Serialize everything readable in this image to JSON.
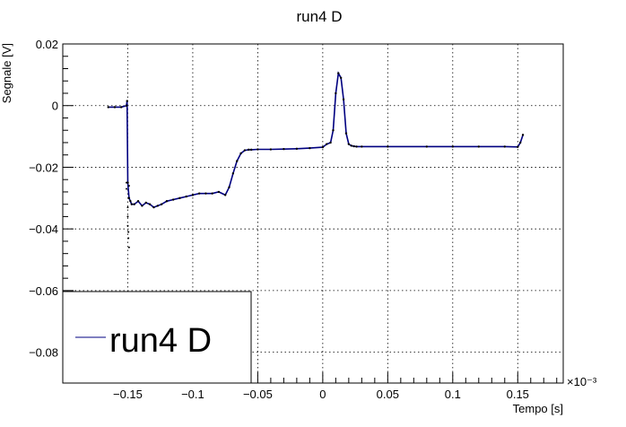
{
  "chart_data": {
    "type": "scatter",
    "title": "run4 D",
    "xlabel": "Tempo [s]",
    "ylabel": "Segnale [V]",
    "x_multiplier": "×10⁻³",
    "xlim": [
      -0.2,
      0.185
    ],
    "ylim": [
      -0.09,
      0.02
    ],
    "x_ticks": [
      {
        "value": -0.15,
        "label": "−0.15"
      },
      {
        "value": -0.1,
        "label": "−0.1"
      },
      {
        "value": -0.05,
        "label": "−0.05"
      },
      {
        "value": 0,
        "label": "0"
      },
      {
        "value": 0.05,
        "label": "0.05"
      },
      {
        "value": 0.1,
        "label": "0.1"
      },
      {
        "value": 0.15,
        "label": "0.15"
      }
    ],
    "y_ticks": [
      {
        "value": 0.02,
        "label": "0.02"
      },
      {
        "value": 0,
        "label": "0"
      },
      {
        "value": -0.02,
        "label": "−0.02"
      },
      {
        "value": -0.04,
        "label": "−0.04"
      },
      {
        "value": -0.06,
        "label": "−0.06"
      },
      {
        "value": -0.08,
        "label": "−0.08"
      }
    ],
    "grid": true,
    "legend": {
      "position": "bottom-left",
      "entries": [
        "run4 D"
      ]
    },
    "colors": {
      "series": "#000080",
      "marker": "#000000",
      "grid": "#000000"
    },
    "series": [
      {
        "name": "run4 D",
        "x": [
          -0.165,
          -0.16,
          -0.155,
          -0.151,
          -0.1505,
          -0.15,
          -0.149,
          -0.148,
          -0.147,
          -0.145,
          -0.142,
          -0.139,
          -0.136,
          -0.133,
          -0.13,
          -0.127,
          -0.124,
          -0.12,
          -0.115,
          -0.11,
          -0.105,
          -0.1,
          -0.095,
          -0.09,
          -0.085,
          -0.08,
          -0.075,
          -0.072,
          -0.069,
          -0.066,
          -0.063,
          -0.06,
          -0.057,
          -0.055,
          -0.05,
          -0.04,
          -0.03,
          -0.02,
          -0.01,
          0,
          0.003,
          0.006,
          0.008,
          0.01,
          0.012,
          0.014,
          0.016,
          0.018,
          0.02,
          0.022,
          0.024,
          0.026,
          0.03,
          0.05,
          0.08,
          0.1,
          0.12,
          0.14,
          0.15,
          0.152,
          0.154
        ],
        "y": [
          -0.0005,
          -0.0005,
          -0.0005,
          0.0,
          0.0015,
          -0.025,
          -0.03,
          -0.031,
          -0.032,
          -0.032,
          -0.031,
          -0.0325,
          -0.0315,
          -0.032,
          -0.033,
          -0.0325,
          -0.032,
          -0.031,
          -0.0305,
          -0.03,
          -0.0295,
          -0.029,
          -0.0285,
          -0.0285,
          -0.0285,
          -0.028,
          -0.029,
          -0.0265,
          -0.022,
          -0.018,
          -0.0155,
          -0.0145,
          -0.0143,
          -0.0143,
          -0.0142,
          -0.0142,
          -0.0141,
          -0.014,
          -0.0138,
          -0.0135,
          -0.0125,
          -0.012,
          -0.008,
          0.004,
          0.0105,
          0.009,
          0.002,
          -0.009,
          -0.0125,
          -0.013,
          -0.0132,
          -0.0133,
          -0.0133,
          -0.0133,
          -0.0133,
          -0.0133,
          -0.0133,
          -0.0133,
          -0.0134,
          -0.012,
          -0.0095
        ]
      }
    ],
    "outliers": {
      "x": [
        -0.151,
        -0.151,
        -0.15,
        -0.15,
        -0.15,
        -0.1495,
        -0.1495,
        -0.149,
        -0.149
      ],
      "y": [
        -0.025,
        -0.027,
        -0.033,
        -0.036,
        -0.039,
        -0.041,
        -0.043,
        -0.046,
        -0.026
      ]
    }
  }
}
